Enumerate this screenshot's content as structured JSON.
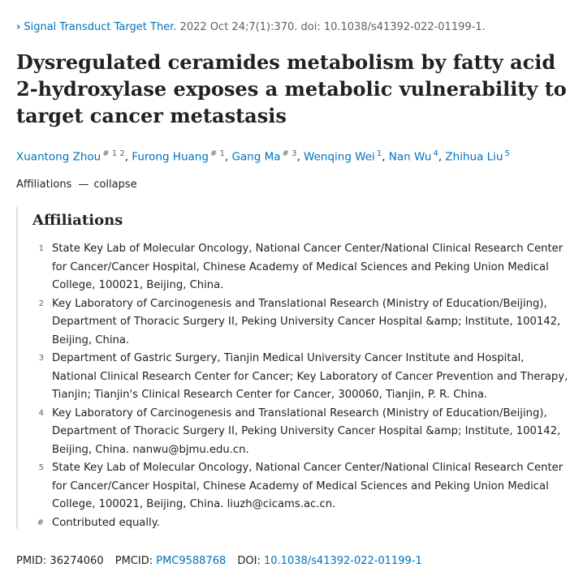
{
  "citation": {
    "journal": "Signal Transduct Target Ther.",
    "details": "2022 Oct 24;7(1):370. doi: 10.1038/s41392-022-01199-1."
  },
  "title": "Dysregulated ceramides metabolism by fatty acid 2-hydroxylase exposes a metabolic vulnerability to target cancer metastasis",
  "authors": [
    {
      "name": "Xuantong Zhou",
      "marks": "# 1 2"
    },
    {
      "name": "Furong Huang",
      "marks": "# 1"
    },
    {
      "name": "Gang Ma",
      "marks": "# 3"
    },
    {
      "name": "Wenqing Wei",
      "marks": "1"
    },
    {
      "name": "Nan Wu",
      "marks": "4"
    },
    {
      "name": "Zhihua Liu",
      "marks": "5"
    }
  ],
  "affiliations_toggle": {
    "label": "Affiliations",
    "dash": "—",
    "action": "collapse"
  },
  "affiliations": {
    "heading": "Affiliations",
    "items": [
      {
        "num": "1",
        "text": "State Key Lab of Molecular Oncology, National Cancer Center/National Clinical Research Center for Cancer/Cancer Hospital, Chinese Academy of Medical Sciences and Peking Union Medical College, 100021, Beijing, China."
      },
      {
        "num": "2",
        "text": "Key Laboratory of Carcinogenesis and Translational Research (Ministry of Education/Beijing), Department of Thoracic Surgery II, Peking University Cancer Hospital &amp; Institute, 100142, Beijing, China."
      },
      {
        "num": "3",
        "text": "Department of Gastric Surgery, Tianjin Medical University Cancer Institute and Hospital, National Clinical Research Center for Cancer; Key Laboratory of Cancer Prevention and Therapy, Tianjin; Tianjin's Clinical Research Center for Cancer, 300060, Tianjin, P. R. China."
      },
      {
        "num": "4",
        "text": "Key Laboratory of Carcinogenesis and Translational Research (Ministry of Education/Beijing), Department of Thoracic Surgery II, Peking University Cancer Hospital &amp; Institute, 100142, Beijing, China. nanwu@bjmu.edu.cn."
      },
      {
        "num": "5",
        "text": "State Key Lab of Molecular Oncology, National Cancer Center/National Clinical Research Center for Cancer/Cancer Hospital, Chinese Academy of Medical Sciences and Peking Union Medical College, 100021, Beijing, China. liuzh@cicams.ac.cn."
      },
      {
        "num": "#",
        "text": "Contributed equally."
      }
    ]
  },
  "identifiers": {
    "pmid_label": "PMID:",
    "pmid": "36274060",
    "pmcid_label": "PMCID:",
    "pmcid": "PMC9588768",
    "doi_label": "DOI:",
    "doi": "10.1038/s41392-022-01199-1"
  },
  "colors": {
    "link": "#0071bc",
    "text": "#212121",
    "muted": "#5b616b"
  }
}
